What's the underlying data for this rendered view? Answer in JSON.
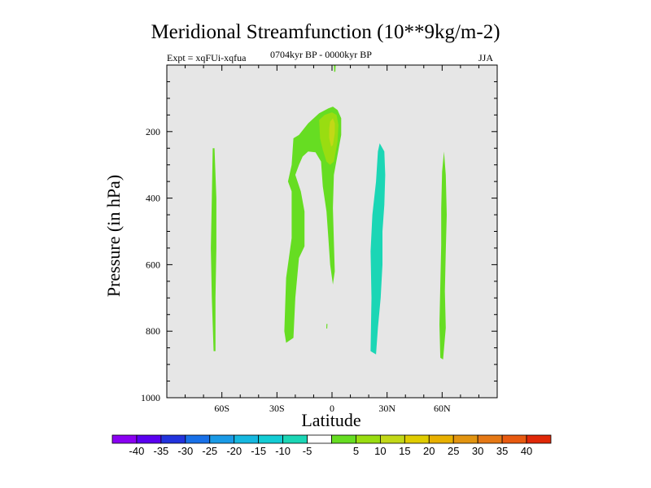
{
  "chart_data": {
    "type": "contour",
    "title": "Meridional Streamfunction (10**9kg/m-2)",
    "subtitle_left": "Expt = xqFUi-xqfua",
    "subtitle_center": "0704kyr BP - 0000kyr BP",
    "subtitle_right": "JJA",
    "xlabel": "Latitude",
    "ylabel": "Pressure (in hPa)",
    "xlim": [
      -90,
      90
    ],
    "ylim": [
      1000,
      0
    ],
    "x_ticks": [
      {
        "value": -60,
        "label": "60S"
      },
      {
        "value": -30,
        "label": "30S"
      },
      {
        "value": 0,
        "label": "0"
      },
      {
        "value": 30,
        "label": "30N"
      },
      {
        "value": 60,
        "label": "60N"
      }
    ],
    "y_ticks": [
      {
        "value": 200,
        "label": "200"
      },
      {
        "value": 400,
        "label": "400"
      },
      {
        "value": 600,
        "label": "600"
      },
      {
        "value": 800,
        "label": "800"
      },
      {
        "value": 1000,
        "label": "1000"
      }
    ],
    "background_color": "#e6e6e6",
    "regions": [
      {
        "level": "5 to 10",
        "color": "#66dd22",
        "polygon": [
          [
            -64,
            250
          ],
          [
            -63,
            400
          ],
          [
            -63,
            550
          ],
          [
            -63.5,
            700
          ],
          [
            -63.5,
            860
          ],
          [
            -64.5,
            860
          ],
          [
            -65.5,
            700
          ],
          [
            -66,
            550
          ],
          [
            -65.5,
            400
          ],
          [
            -65,
            250
          ]
        ]
      },
      {
        "level": "5 to 10",
        "color": "#66dd22",
        "polygon": [
          [
            -21,
            220
          ],
          [
            -18,
            210
          ],
          [
            -13,
            175
          ],
          [
            -7,
            145
          ],
          [
            -2,
            130
          ],
          [
            0.5,
            125
          ],
          [
            3,
            135
          ],
          [
            5,
            160
          ],
          [
            5,
            210
          ],
          [
            3,
            270
          ],
          [
            1,
            330
          ],
          [
            0.5,
            430
          ],
          [
            1,
            530
          ],
          [
            1.5,
            620
          ],
          [
            0.5,
            660
          ],
          [
            -1,
            600
          ],
          [
            -2,
            520
          ],
          [
            -3,
            440
          ],
          [
            -5,
            365
          ],
          [
            -6,
            290
          ],
          [
            -9,
            262
          ],
          [
            -13,
            260
          ],
          [
            -16,
            275
          ],
          [
            -18,
            300
          ],
          [
            -20,
            330
          ],
          [
            -17,
            380
          ],
          [
            -15,
            440
          ],
          [
            -15,
            545
          ],
          [
            -18,
            580
          ],
          [
            -20,
            700
          ],
          [
            -21,
            820
          ],
          [
            -25,
            835
          ],
          [
            -26,
            800
          ],
          [
            -25,
            640
          ],
          [
            -22,
            520
          ],
          [
            -22,
            380
          ],
          [
            -24,
            350
          ],
          [
            -22,
            300
          ]
        ]
      },
      {
        "level": "10 to 15",
        "color": "#99dd11",
        "polygon": [
          [
            -7,
            165
          ],
          [
            -4,
            150
          ],
          [
            0,
            142
          ],
          [
            2.5,
            150
          ],
          [
            3.5,
            180
          ],
          [
            3,
            230
          ],
          [
            1,
            290
          ],
          [
            -1,
            300
          ],
          [
            -3,
            290
          ],
          [
            -5,
            255
          ],
          [
            -6.5,
            220
          ]
        ]
      },
      {
        "level": "15 to 20",
        "color": "#c2d817",
        "polygon": [
          [
            -1,
            170
          ],
          [
            0.5,
            160
          ],
          [
            1.5,
            175
          ],
          [
            1.5,
            205
          ],
          [
            0.5,
            240
          ],
          [
            -0.5,
            245
          ],
          [
            -1.5,
            220
          ],
          [
            -1.5,
            190
          ]
        ]
      },
      {
        "level": "5 to 10",
        "color": "#66dd22",
        "polygon": [
          [
            1,
            0
          ],
          [
            2,
            0
          ],
          [
            1.8,
            20
          ],
          [
            1.2,
            20
          ]
        ]
      },
      {
        "level": "5 to 10",
        "color": "#66dd22",
        "polygon": [
          [
            -3,
            778
          ],
          [
            -2.5,
            778
          ],
          [
            -2.6,
            792
          ],
          [
            -3.1,
            792
          ]
        ]
      },
      {
        "level": "-10 to -5",
        "color": "#1bd6b5",
        "polygon": [
          [
            26,
            235
          ],
          [
            28.5,
            260
          ],
          [
            29,
            330
          ],
          [
            28.5,
            420
          ],
          [
            27.5,
            500
          ],
          [
            27.5,
            600
          ],
          [
            26.5,
            700
          ],
          [
            25,
            790
          ],
          [
            24,
            870
          ],
          [
            21,
            860
          ],
          [
            21.5,
            700
          ],
          [
            21,
            560
          ],
          [
            22,
            450
          ],
          [
            24,
            350
          ],
          [
            25,
            260
          ]
        ]
      },
      {
        "level": "5 to 10",
        "color": "#66dd22",
        "polygon": [
          [
            61,
            260
          ],
          [
            62,
            330
          ],
          [
            62.5,
            450
          ],
          [
            62,
            560
          ],
          [
            61.5,
            680
          ],
          [
            62,
            790
          ],
          [
            60.5,
            885
          ],
          [
            59,
            880
          ],
          [
            58.5,
            780
          ],
          [
            59,
            660
          ],
          [
            59.5,
            540
          ],
          [
            59.5,
            430
          ],
          [
            60,
            320
          ]
        ]
      }
    ],
    "colorbar": {
      "colors": [
        "#8a00f2",
        "#5a00f0",
        "#2233dd",
        "#1870e8",
        "#1a9ae6",
        "#16b8e0",
        "#13ccd4",
        "#1bd6b5",
        "#ffffff",
        "#66dd22",
        "#99dd11",
        "#c2d817",
        "#e0cc00",
        "#e8b000",
        "#e29410",
        "#e57815",
        "#e85a10",
        "#e02808"
      ],
      "labels": [
        "-40",
        "-35",
        "-30",
        "-25",
        "-20",
        "-15",
        "-10",
        "-5",
        "5",
        "10",
        "15",
        "20",
        "25",
        "30",
        "35",
        "40"
      ]
    }
  }
}
